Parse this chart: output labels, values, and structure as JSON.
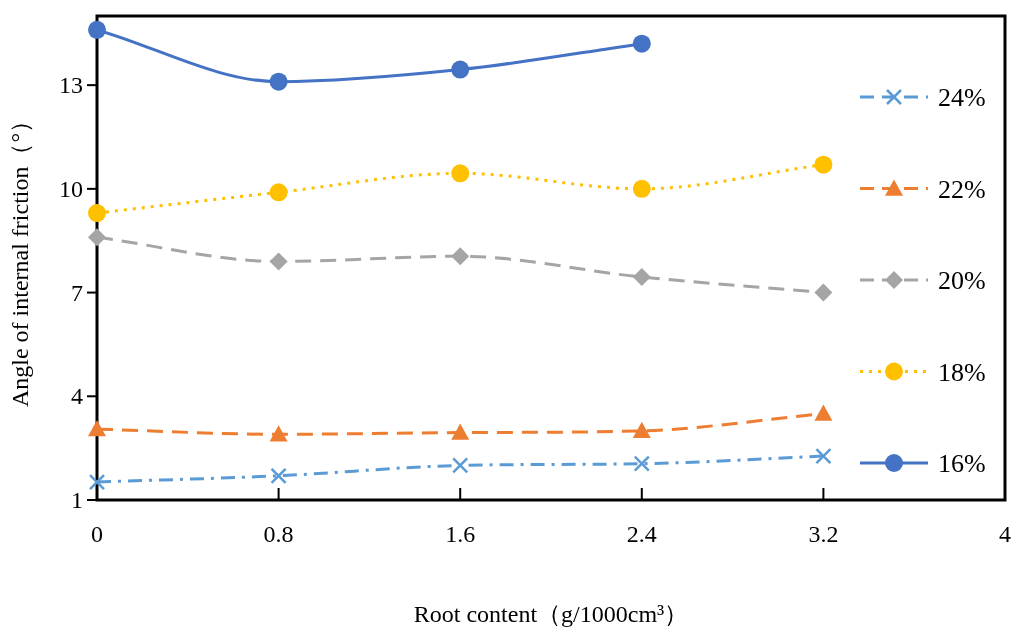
{
  "chart_data": {
    "type": "line",
    "xlabel": "Root content（g/1000cm³）",
    "ylabel": "Angle of internal friction（°）",
    "x": [
      0,
      0.8,
      1.6,
      2.4,
      3.2
    ],
    "xlim": [
      0,
      4
    ],
    "xticks": [
      0,
      0.8,
      1.6,
      2.4,
      3.2,
      4
    ],
    "ylim": [
      1,
      15
    ],
    "yticks": [
      1,
      4,
      7,
      10,
      13
    ],
    "legend": "right",
    "series": [
      {
        "name": "24%",
        "color": "#5b9bd5",
        "marker": "cross",
        "line_style": "dashdot",
        "values": [
          1.52,
          1.7,
          2.0,
          2.05,
          2.27
        ]
      },
      {
        "name": "22%",
        "color": "#ed7d31",
        "marker": "triangle",
        "line_style": "dashed",
        "values": [
          3.05,
          2.9,
          2.95,
          3.0,
          3.5
        ]
      },
      {
        "name": "20%",
        "color": "#a5a5a5",
        "marker": "diamond",
        "line_style": "dashed",
        "values": [
          8.6,
          7.9,
          8.05,
          7.45,
          7.0
        ]
      },
      {
        "name": "18%",
        "color": "#ffc000",
        "marker": "circle",
        "line_style": "dotted",
        "values": [
          9.3,
          9.9,
          10.45,
          10.0,
          10.7
        ]
      },
      {
        "name": "16%",
        "color": "#4472c4",
        "marker": "circle",
        "line_style": "solid",
        "values": [
          14.6,
          13.1,
          13.45,
          14.2,
          null
        ]
      }
    ]
  }
}
